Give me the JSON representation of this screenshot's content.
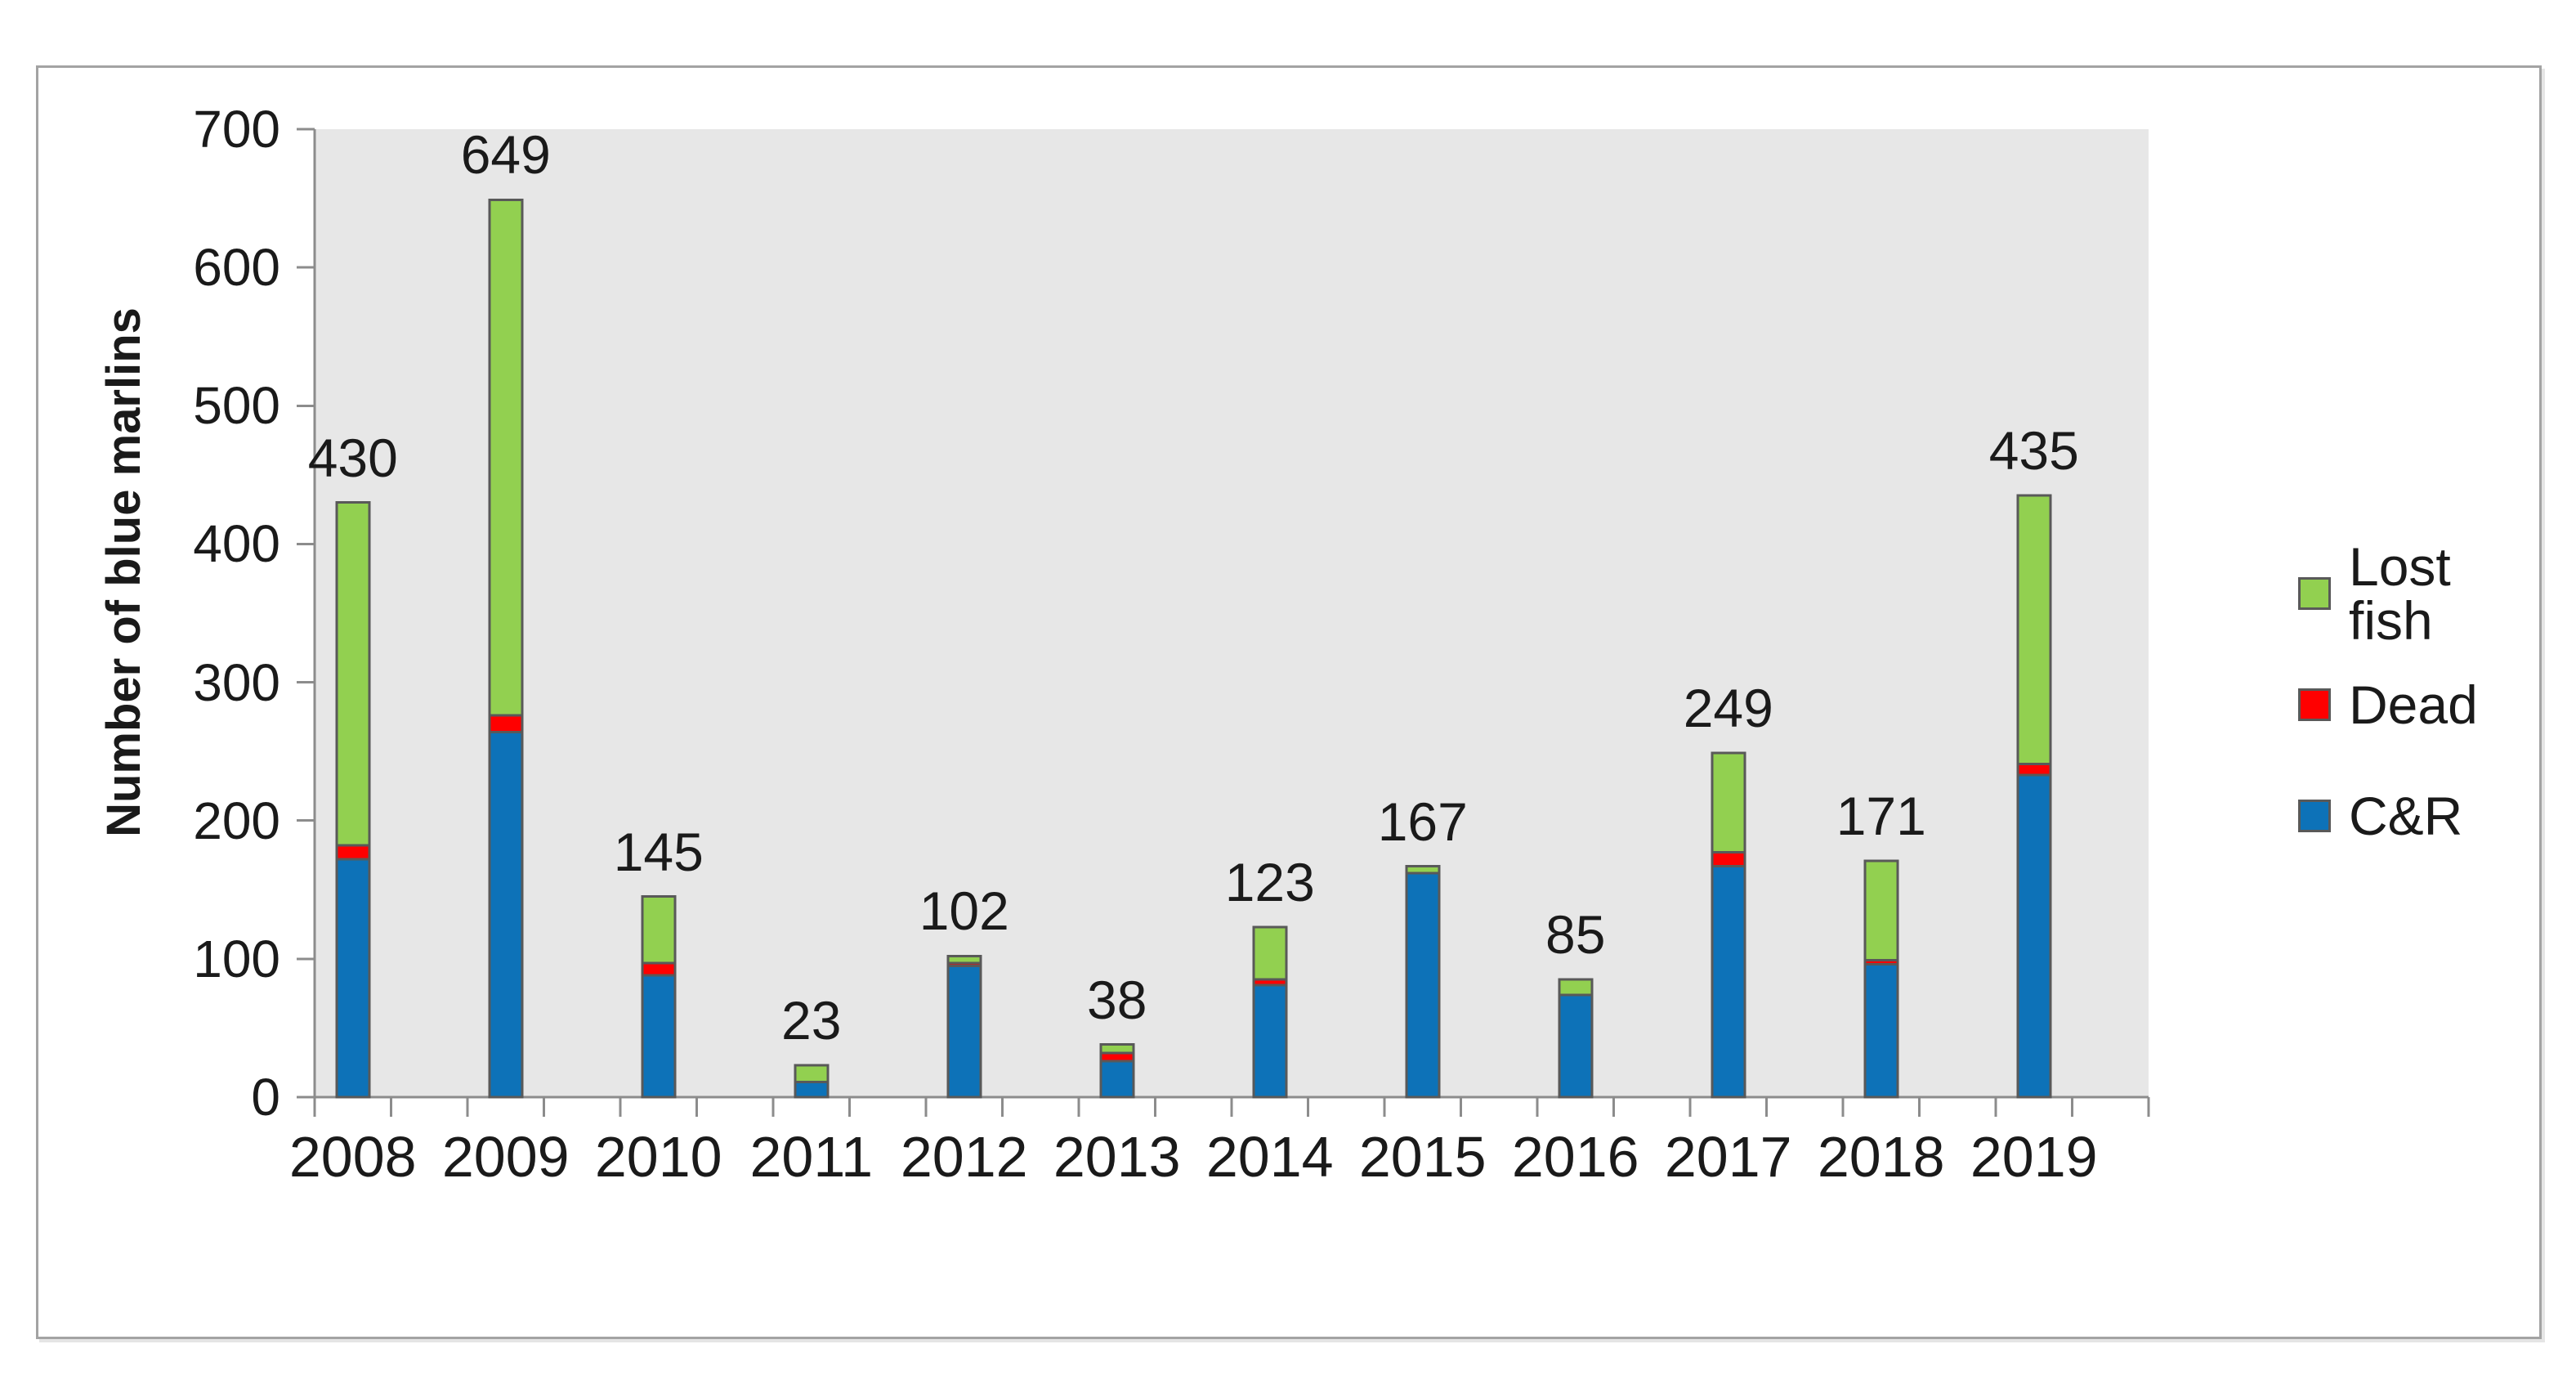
{
  "chart_data": {
    "type": "bar",
    "stacked": true,
    "ylabel": "Number of blue marlins",
    "xlabel": "",
    "categories": [
      "2008",
      "2009",
      "2010",
      "2011",
      "2012",
      "2013",
      "2014",
      "2015",
      "2016",
      "2017",
      "2018",
      "2019"
    ],
    "series": [
      {
        "name": "C&R",
        "color": "#0d72b8",
        "values": [
          172,
          264,
          88,
          11,
          95,
          26,
          81,
          162,
          74,
          167,
          96,
          233
        ]
      },
      {
        "name": "Dead",
        "color": "#ff0000",
        "values": [
          10,
          12,
          9,
          0,
          2,
          6,
          4,
          0,
          0,
          10,
          3,
          8
        ]
      },
      {
        "name": "Lost fish",
        "color": "#92d050",
        "values": [
          248,
          373,
          48,
          12,
          5,
          6,
          38,
          5,
          11,
          72,
          72,
          194
        ]
      }
    ],
    "bar_total_labels": [
      "430",
      "649",
      "145",
      "23",
      "102",
      "38",
      "123",
      "167",
      "85",
      "249",
      "171",
      "435"
    ],
    "ylim": [
      0,
      700
    ],
    "yticks": [
      0,
      100,
      200,
      300,
      400,
      500,
      600,
      700
    ],
    "grid": false,
    "legend_position": "right",
    "legend_order": [
      "Lost fish",
      "Dead",
      "C&R"
    ],
    "colors": {
      "plot_bg": "#e7e7e7",
      "bar_border": "#595959",
      "axis_line": "#8c8c8c",
      "frame_border": "#a3a3a3",
      "text": "#1a1a1a"
    }
  }
}
